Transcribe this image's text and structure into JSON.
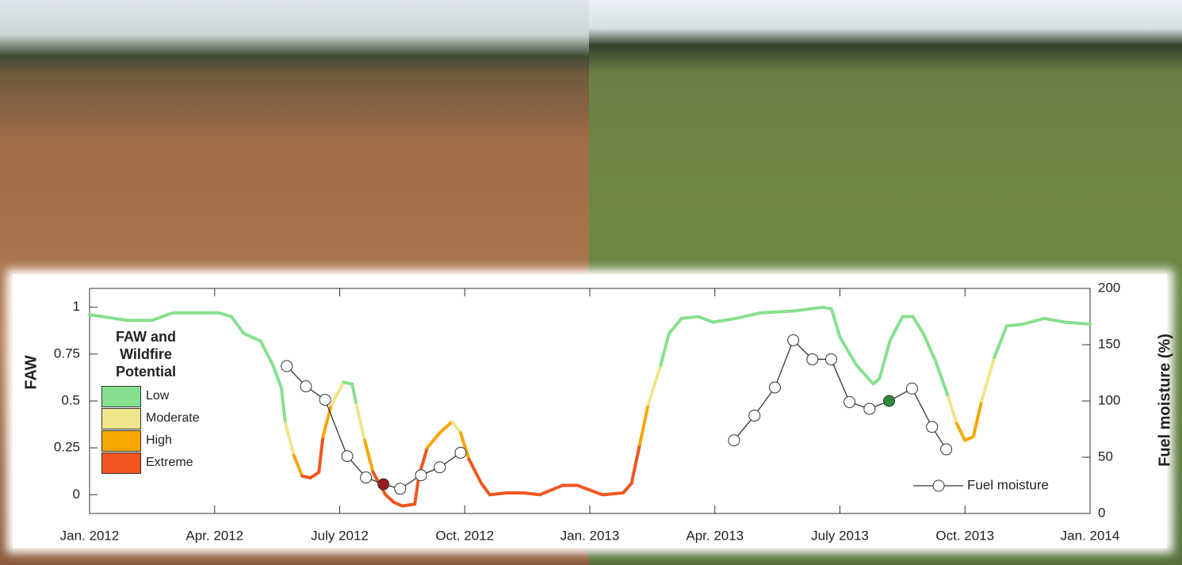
{
  "chart_data": {
    "type": "line",
    "ylabel": "FAW",
    "y2label": "Fuel moisture (%)",
    "legend_title": "FAW and Wildfire Potential",
    "levels": [
      {
        "name": "Low",
        "color": "#86e08f"
      },
      {
        "name": "Moderate",
        "color": "#efe58a"
      },
      {
        "name": "High",
        "color": "#f7a600"
      },
      {
        "name": "Extreme",
        "color": "#f0561e"
      }
    ],
    "xlim": [
      0,
      24
    ],
    "xticks": [
      {
        "value": 0,
        "label": "Jan. 2012"
      },
      {
        "value": 3,
        "label": "Apr. 2012"
      },
      {
        "value": 6,
        "label": "July 2012"
      },
      {
        "value": 9,
        "label": "Oct. 2012"
      },
      {
        "value": 12,
        "label": "Jan. 2013"
      },
      {
        "value": 15,
        "label": "Apr. 2013"
      },
      {
        "value": 18,
        "label": "July 2013"
      },
      {
        "value": 21,
        "label": "Oct. 2013"
      },
      {
        "value": 24,
        "label": "Jan. 2014"
      }
    ],
    "ylim": [
      -0.1,
      1.1
    ],
    "yticks": [
      0,
      0.25,
      0.5,
      0.75,
      1
    ],
    "y2lim": [
      0,
      200
    ],
    "y2ticks": [
      0,
      50,
      100,
      150,
      200
    ],
    "series": [
      {
        "axis": "y",
        "x": [
          0,
          0.9,
          1.5,
          2.0,
          3.1,
          3.4,
          3.7,
          4.1,
          4.4,
          4.6,
          4.7,
          4.9,
          5.1,
          5.3,
          5.5,
          5.6,
          5.8,
          6.1,
          6.3,
          6.4,
          6.6,
          6.8,
          7.1,
          7.3,
          7.5,
          7.8,
          7.9,
          8.1,
          8.4,
          8.7,
          8.9,
          9.1,
          9.4,
          9.6,
          10.0,
          10.4,
          10.8,
          11.35,
          11.7,
          12.3,
          12.8,
          13.0,
          13.2,
          13.4,
          13.7,
          13.9,
          14.2,
          14.6,
          14.96,
          15.5,
          16.1,
          16.9,
          17.6,
          17.8,
          18.0,
          18.4,
          18.8,
          18.95,
          19.2,
          19.5,
          19.75,
          20.0,
          20.3,
          20.6,
          20.8,
          21.0,
          21.2,
          21.4,
          21.7,
          22.0,
          22.4,
          22.9,
          23.4,
          24.0
        ],
        "values": [
          0.96,
          0.93,
          0.93,
          0.97,
          0.97,
          0.95,
          0.86,
          0.82,
          0.69,
          0.57,
          0.38,
          0.21,
          0.1,
          0.09,
          0.12,
          0.31,
          0.48,
          0.6,
          0.59,
          0.48,
          0.29,
          0.12,
          0.0,
          -0.04,
          -0.06,
          -0.05,
          0.1,
          0.25,
          0.33,
          0.39,
          0.33,
          0.19,
          0.06,
          0.0,
          0.01,
          0.01,
          0.0,
          0.05,
          0.05,
          0.0,
          0.01,
          0.06,
          0.27,
          0.48,
          0.69,
          0.86,
          0.94,
          0.95,
          0.92,
          0.94,
          0.97,
          0.98,
          1.0,
          0.99,
          0.84,
          0.69,
          0.59,
          0.62,
          0.82,
          0.95,
          0.95,
          0.86,
          0.71,
          0.52,
          0.38,
          0.29,
          0.31,
          0.5,
          0.73,
          0.9,
          0.91,
          0.94,
          0.92,
          0.91
        ],
        "colors": [
          "#86e08f",
          "#86e08f",
          "#86e08f",
          "#86e08f",
          "#86e08f",
          "#86e08f",
          "#86e08f",
          "#86e08f",
          "#86e08f",
          "#86e08f",
          "#efe58a",
          "#f7a600",
          "#f0561e",
          "#f0561e",
          "#f0561e",
          "#f7a600",
          "#efe58a",
          "#86e08f",
          "#86e08f",
          "#efe58a",
          "#f7a600",
          "#f0561e",
          "#f0561e",
          "#f0561e",
          "#f0561e",
          "#f0561e",
          "#f0561e",
          "#f7a600",
          "#f7a600",
          "#efe58a",
          "#f7a600",
          "#f0561e",
          "#f0561e",
          "#f0561e",
          "#f0561e",
          "#f0561e",
          "#f0561e",
          "#f0561e",
          "#f0561e",
          "#f0561e",
          "#f0561e",
          "#f0561e",
          "#f7a600",
          "#efe58a",
          "#86e08f",
          "#86e08f",
          "#86e08f",
          "#86e08f",
          "#86e08f",
          "#86e08f",
          "#86e08f",
          "#86e08f",
          "#86e08f",
          "#86e08f",
          "#86e08f",
          "#86e08f",
          "#86e08f",
          "#86e08f",
          "#86e08f",
          "#86e08f",
          "#86e08f",
          "#86e08f",
          "#86e08f",
          "#efe58a",
          "#f7a600",
          "#f7a600",
          "#f7a600",
          "#efe58a",
          "#86e08f",
          "#86e08f",
          "#86e08f",
          "#86e08f",
          "#86e08f",
          "#86e08f"
        ]
      },
      {
        "name": "Fuel moisture",
        "axis": "y2",
        "color": "#333333",
        "x": [
          4.73,
          5.19,
          5.65,
          6.18,
          6.63,
          7.05,
          7.45,
          7.95,
          8.4,
          8.9,
          12.0,
          15.46,
          15.95,
          16.44,
          16.88,
          17.34,
          17.79,
          18.23,
          18.71,
          19.18,
          19.73,
          20.21,
          20.55
        ],
        "values": [
          131,
          113,
          101,
          51,
          32,
          26,
          22,
          34,
          41,
          54,
          null,
          65,
          87,
          112,
          154,
          137,
          137,
          99,
          93,
          100,
          111,
          77,
          57
        ],
        "marker_colors": [
          null,
          null,
          null,
          null,
          null,
          "#9b1b1b",
          null,
          null,
          null,
          null,
          null,
          null,
          null,
          null,
          null,
          null,
          null,
          null,
          null,
          "#2e8b3a",
          null,
          null,
          null
        ]
      }
    ]
  }
}
